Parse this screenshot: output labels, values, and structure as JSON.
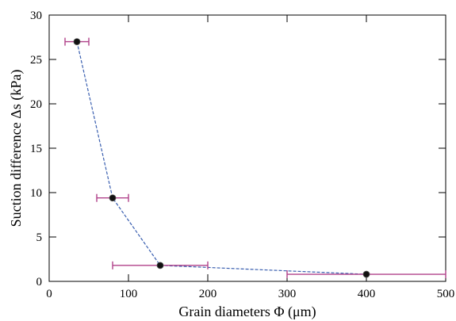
{
  "chart_data": {
    "type": "scatter",
    "title": "",
    "xlabel": "Grain diameters Φ (μm)",
    "ylabel": "Suction difference Δs (kPa)",
    "xlim": [
      0,
      500
    ],
    "ylim": [
      0,
      30
    ],
    "x_ticks": [
      0,
      100,
      200,
      300,
      400,
      500
    ],
    "y_ticks": [
      0,
      5,
      10,
      15,
      20,
      25,
      30
    ],
    "x_tick_labels": [
      "0",
      "100",
      "200",
      "300",
      "400",
      "500"
    ],
    "y_tick_labels": [
      "0",
      "5",
      "10",
      "15",
      "20",
      "25",
      "30"
    ],
    "grid": false,
    "series": [
      {
        "points": [
          {
            "x": 35,
            "y": 27.0,
            "xerr_low": 20,
            "xerr_high": 50
          },
          {
            "x": 80,
            "y": 9.4,
            "xerr_low": 60,
            "xerr_high": 100
          },
          {
            "x": 140,
            "y": 1.8,
            "xerr_low": 80,
            "xerr_high": 200
          },
          {
            "x": 400,
            "y": 0.8,
            "xerr_low": 300,
            "xerr_high": 500
          }
        ],
        "marker_color": "#111111",
        "line_color": "#3a5fb0",
        "line_style": "dashed",
        "errorbar_color": "#b0418a"
      }
    ]
  }
}
